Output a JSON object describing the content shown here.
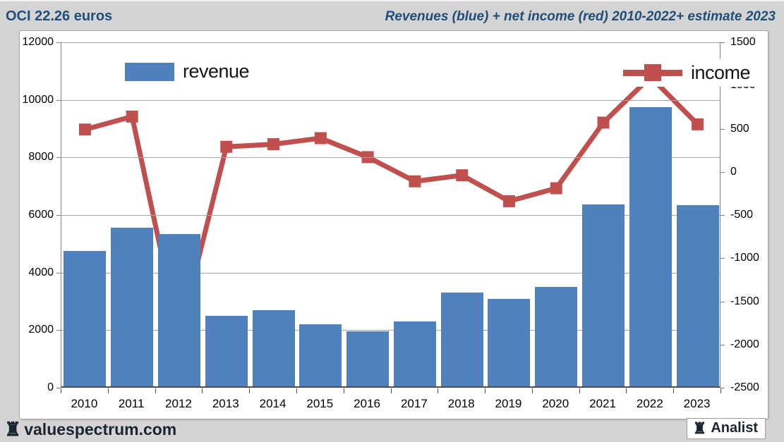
{
  "header": {
    "left_title": "OCI 22.26 euros",
    "right_title": "Revenues (blue) + net income (red) 2010-2022+ estimate 2023"
  },
  "footer": {
    "brand": "valuespectrum.com",
    "badge": "Analist",
    "rook_icon": "♜"
  },
  "colors": {
    "bar_blue": "#4f81bd",
    "line_red": "#c0504d",
    "title_blue": "#1f4e79",
    "page_bg": "#d4d4d4",
    "gridline": "#a6a6a6"
  },
  "chart_data": {
    "type": "bar",
    "subtype": "bar+line combo, dual axis",
    "categories": [
      "2010",
      "2011",
      "2012",
      "2013",
      "2014",
      "2015",
      "2016",
      "2017",
      "2018",
      "2019",
      "2020",
      "2021",
      "2022",
      "2023"
    ],
    "series": [
      {
        "name": "revenue",
        "type": "bar",
        "axis": "left",
        "color": "#4f81bd",
        "values": [
          4700,
          5500,
          5280,
          2450,
          2650,
          2150,
          1900,
          2250,
          3250,
          3030,
          3450,
          6320,
          9700,
          6300
        ]
      },
      {
        "name": "income",
        "type": "line",
        "axis": "right",
        "color": "#c0504d",
        "values": [
          490,
          640,
          -1900,
          290,
          320,
          390,
          170,
          -110,
          -40,
          -340,
          -190,
          570,
          1100,
          550
        ]
      }
    ],
    "title": "Revenues (blue) + net income (red) 2010-2022+ estimate 2023",
    "xlabel": "",
    "ylabel": "",
    "left_axis": {
      "min": 0,
      "max": 12000,
      "step": 2000,
      "ticks": [
        "0",
        "2000",
        "4000",
        "6000",
        "8000",
        "10000",
        "12000"
      ]
    },
    "right_axis": {
      "min": -2500,
      "max": 1500,
      "step": 500,
      "ticks": [
        "-2500",
        "-2000",
        "-1500",
        "-1000",
        "-500",
        "0",
        "500",
        "1000",
        "1500"
      ]
    },
    "grid": true,
    "legend_position": "top-left and top-right, inside plot"
  }
}
